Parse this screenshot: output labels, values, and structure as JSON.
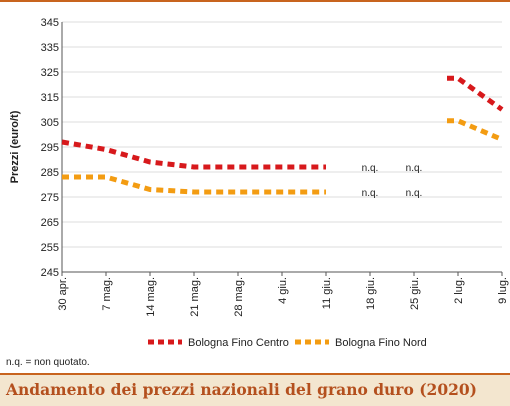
{
  "footer_title": "Andamento dei prezzi nazionali del grano duro (2020)",
  "note": "n.q. = non quotato.",
  "chart_data": {
    "type": "line",
    "ylabel": "Prezzi (euro/t)",
    "xlabel": "",
    "ylim": [
      245,
      345
    ],
    "yticks": [
      245,
      255,
      265,
      275,
      285,
      295,
      305,
      315,
      325,
      335,
      345
    ],
    "categories": [
      "30 apr.",
      "7 mag.",
      "14 mag.",
      "21 mag.",
      "28 mag.",
      "4 giu.",
      "11 giu.",
      "18 giu.",
      "25 giu.",
      "2 lug.",
      "9 lug."
    ],
    "grid": "horizontal",
    "legend_position": "bottom",
    "series": [
      {
        "name": "Bologna Fino Centro",
        "color": "#d7191c",
        "values": [
          297,
          294,
          289,
          287,
          287,
          287,
          287,
          null,
          null,
          322.5,
          310
        ],
        "segments": [
          [
            0,
            6
          ],
          [
            9,
            10
          ]
        ],
        "extra_points": [
          {
            "x": 8.75,
            "y": 322.5
          }
        ]
      },
      {
        "name": "Bologna Fino Nord",
        "color": "#f39c12",
        "values": [
          283,
          283,
          278,
          277,
          277,
          277,
          277,
          null,
          null,
          305.5,
          298
        ],
        "segments": [
          [
            0,
            6
          ],
          [
            9,
            10
          ]
        ],
        "extra_points": [
          {
            "x": 8.75,
            "y": 305.5
          }
        ]
      }
    ],
    "annotations": [
      {
        "x": "18 giu.",
        "y": 287,
        "text": "n.q."
      },
      {
        "x": "25 giu.",
        "y": 287,
        "text": "n.q."
      },
      {
        "x": "18 giu.",
        "y": 277,
        "text": "n.q."
      },
      {
        "x": "25 giu.",
        "y": 277,
        "text": "n.q."
      }
    ]
  }
}
